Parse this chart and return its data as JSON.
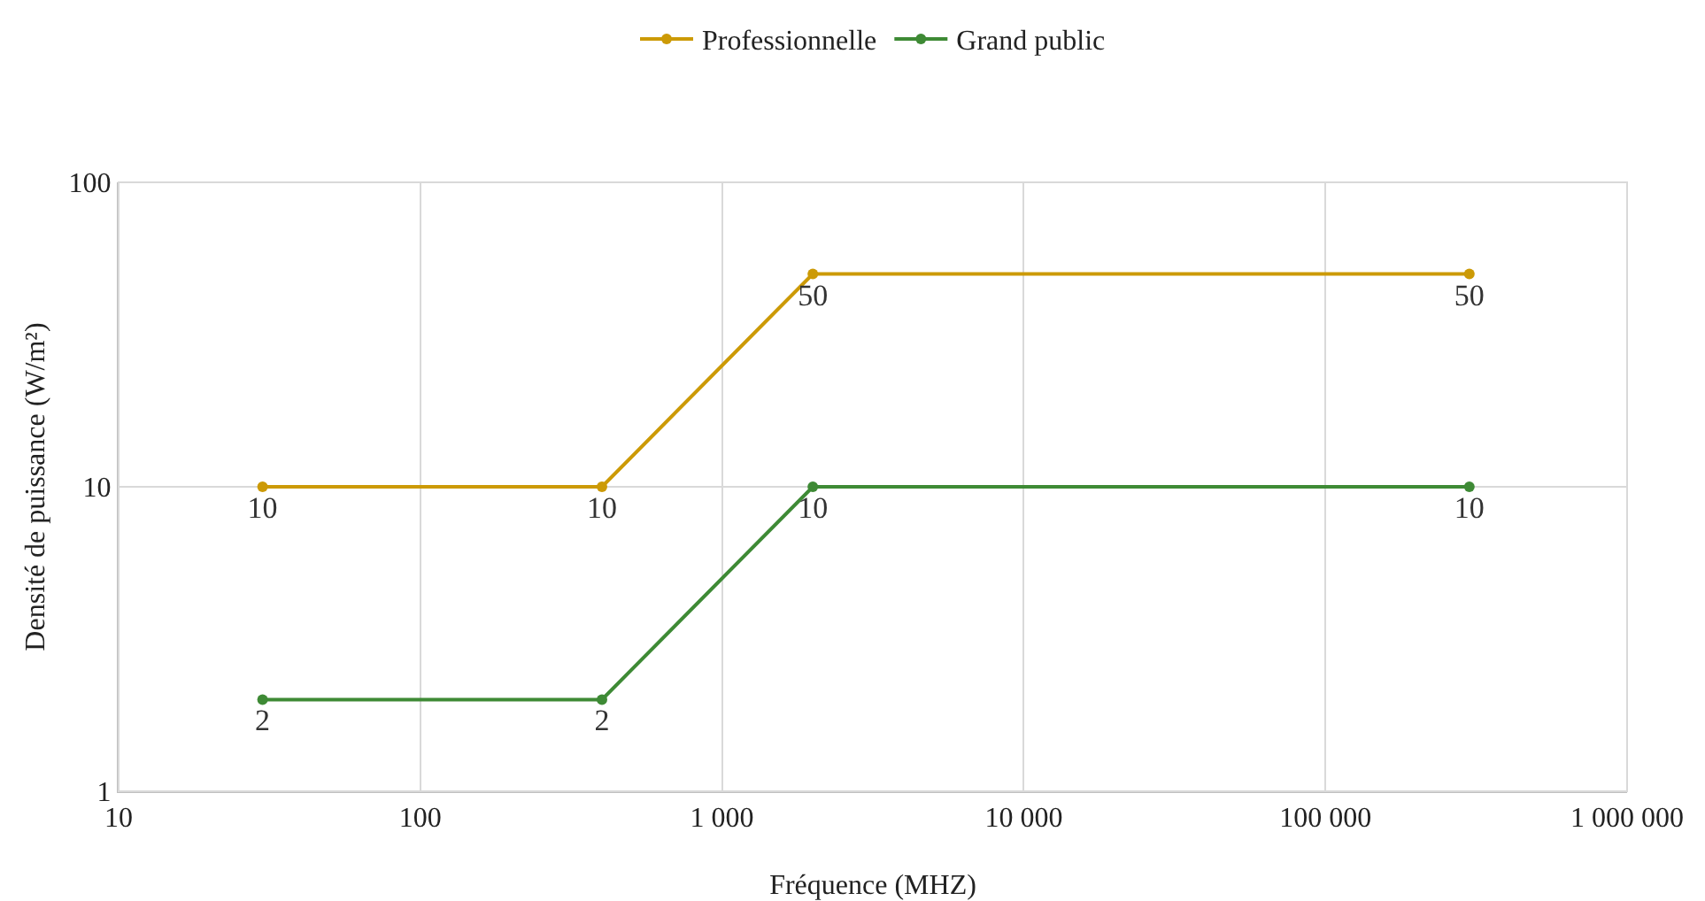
{
  "chart_data": {
    "type": "line",
    "xlabel": "Fréquence (MHZ)",
    "ylabel": "Densité de puissance (W/m²)",
    "x": [
      30,
      400,
      2000,
      300000
    ],
    "series": [
      {
        "name": "Professionnelle",
        "color": "#cc9a06",
        "values": [
          10,
          10,
          50,
          50
        ]
      },
      {
        "name": "Grand public",
        "color": "#3e8a35",
        "values": [
          2,
          2,
          10,
          10
        ]
      }
    ],
    "log": "xy",
    "xlim": [
      10,
      1000000
    ],
    "ylim": [
      1,
      100
    ],
    "xticks": [
      10,
      100,
      {
        "value": 1000,
        "label": "1 000"
      },
      {
        "value": 10000,
        "label": "10 000"
      },
      {
        "value": 100000,
        "label": "100 000"
      },
      {
        "value": 1000000,
        "label": "1 000 000"
      }
    ],
    "yticks": [
      1,
      10,
      100
    ],
    "grid": true,
    "legend": "top",
    "marker": "circle",
    "line_style": "solid",
    "data_labels": true
  }
}
